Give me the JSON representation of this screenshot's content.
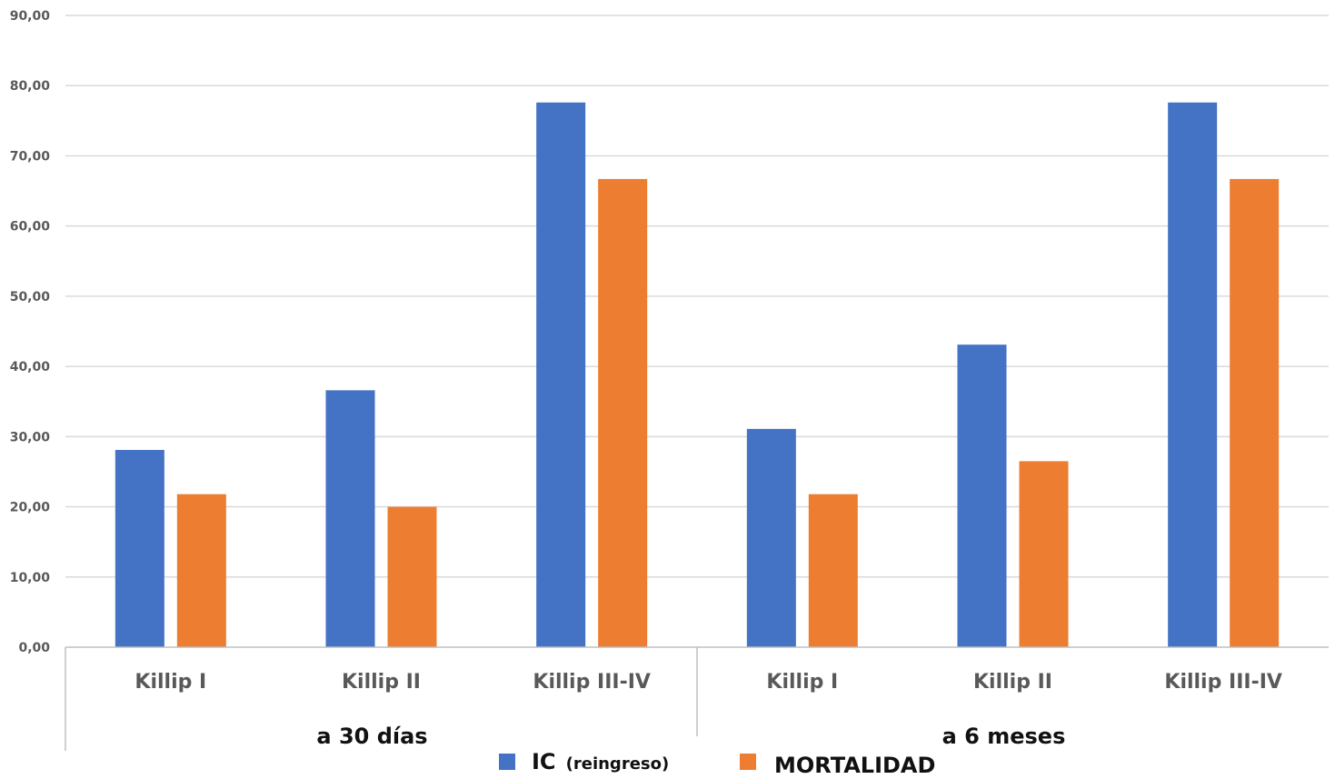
{
  "chart_data": {
    "type": "bar",
    "ylim": [
      0,
      90
    ],
    "y_ticks": [
      "0,00",
      "10,00",
      "20,00",
      "30,00",
      "40,00",
      "50,00",
      "60,00",
      "70,00",
      "80,00",
      "90,00"
    ],
    "groups": [
      {
        "label": "a 30 días",
        "categories": [
          "Killip I",
          "Killip II",
          "Killip III-IV"
        ]
      },
      {
        "label": "a 6 meses",
        "categories": [
          "Killip I",
          "Killip II",
          "Killip III-IV"
        ]
      }
    ],
    "categories": [
      "Killip I",
      "Killip II",
      "Killip III-IV",
      "Killip I",
      "Killip II",
      "Killip III-IV"
    ],
    "series": [
      {
        "name": "IC",
        "name_suffix": "(reingreso)",
        "color": "#4472C4",
        "values": [
          28.1,
          36.6,
          77.6,
          31.1,
          43.1,
          77.6
        ]
      },
      {
        "name": "MORTALIDAD",
        "color": "#ED7D31",
        "values": [
          21.8,
          20.0,
          66.7,
          21.8,
          26.5,
          66.7
        ]
      }
    ],
    "grid": true,
    "legend_position": "bottom"
  }
}
